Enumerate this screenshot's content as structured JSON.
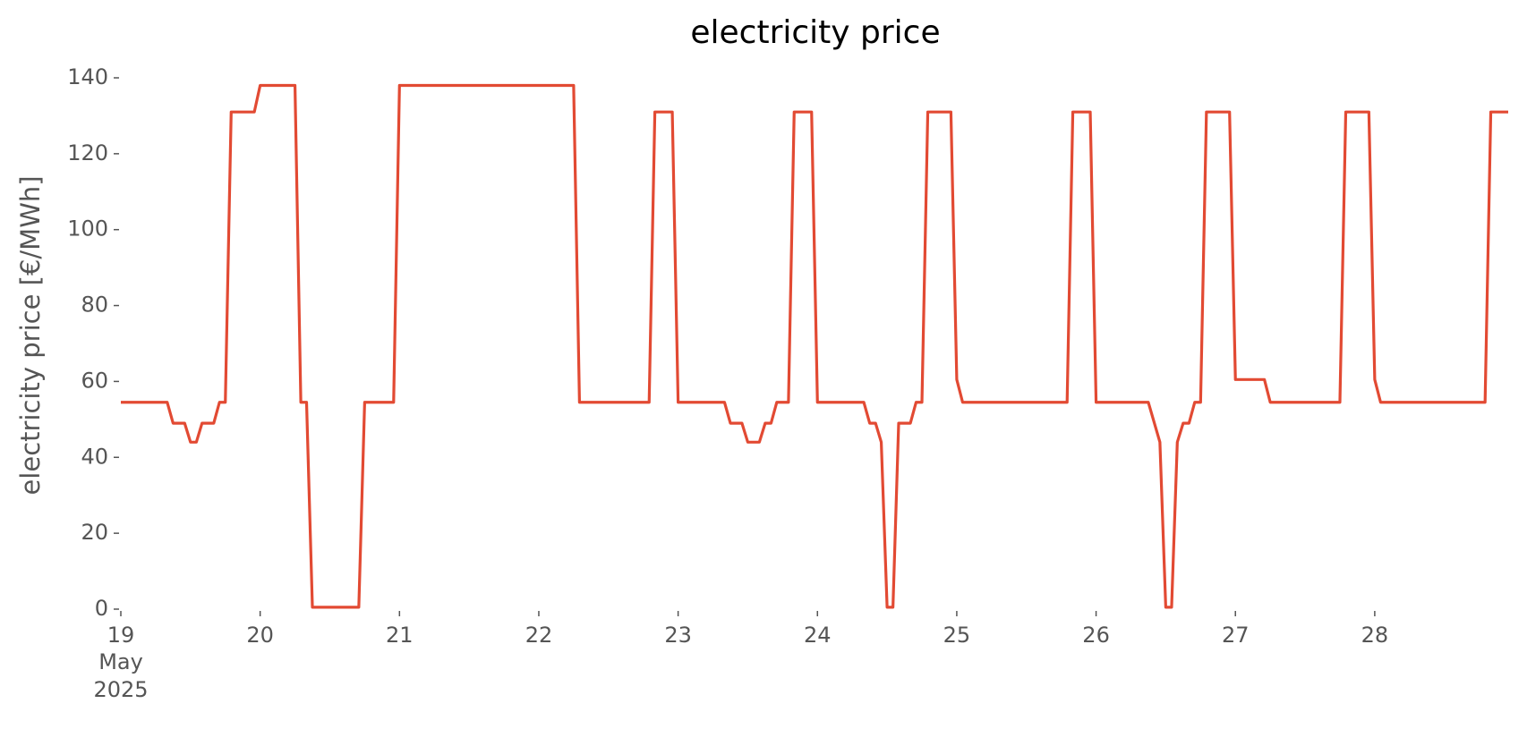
{
  "chart_data": {
    "type": "line",
    "title": "electricity price",
    "y_label": "electricity price [€/MWh]",
    "x_sublabels": [
      "May",
      "2025"
    ],
    "xlim": [
      19,
      28.958
    ],
    "xticks": [
      19,
      20,
      21,
      22,
      23,
      24,
      25,
      26,
      27,
      28
    ],
    "ylim": [
      0,
      140
    ],
    "yticks": [
      0,
      20,
      40,
      60,
      80,
      100,
      120,
      140
    ],
    "grid": false,
    "series": [
      {
        "color": "#E24A33",
        "x": [
          19,
          19.333,
          19.375,
          19.458,
          19.5,
          19.542,
          19.583,
          19.667,
          19.708,
          19.75,
          19.792,
          19.958,
          20.0,
          20.25,
          20.292,
          20.333,
          20.375,
          20.708,
          20.75,
          20.958,
          21.0,
          22.25,
          22.292,
          22.792,
          22.833,
          22.958,
          23.0,
          23.333,
          23.375,
          23.458,
          23.5,
          23.583,
          23.625,
          23.667,
          23.708,
          23.792,
          23.833,
          23.958,
          24.0,
          24.333,
          24.375,
          24.417,
          24.458,
          24.5,
          24.542,
          24.583,
          24.667,
          24.708,
          24.75,
          24.792,
          24.958,
          25.0,
          25.042,
          25.792,
          25.833,
          25.958,
          26.0,
          26.375,
          26.458,
          26.5,
          26.542,
          26.583,
          26.625,
          26.667,
          26.708,
          26.75,
          26.792,
          26.958,
          27.0,
          27.208,
          27.25,
          27.75,
          27.792,
          27.958,
          28.0,
          28.042,
          28.792,
          28.833,
          28.958
        ],
        "values": [
          54.5,
          54.5,
          49,
          49,
          44,
          44,
          49,
          49,
          54.5,
          54.5,
          131,
          131,
          138,
          138,
          54.5,
          54.5,
          0.5,
          0.5,
          54.5,
          54.5,
          138,
          138,
          54.5,
          54.5,
          131,
          131,
          54.5,
          54.5,
          49,
          49,
          44,
          44,
          49,
          49,
          54.5,
          54.5,
          131,
          131,
          54.5,
          54.5,
          49,
          49,
          44,
          0.5,
          0.5,
          49,
          49,
          54.5,
          54.5,
          131,
          131,
          60.5,
          54.5,
          54.5,
          131,
          131,
          54.5,
          54.5,
          44,
          0.5,
          0.5,
          44,
          49,
          49,
          54.5,
          54.5,
          131,
          131,
          60.5,
          60.5,
          54.5,
          54.5,
          131,
          131,
          60.5,
          54.5,
          54.5,
          131,
          131
        ]
      }
    ]
  }
}
